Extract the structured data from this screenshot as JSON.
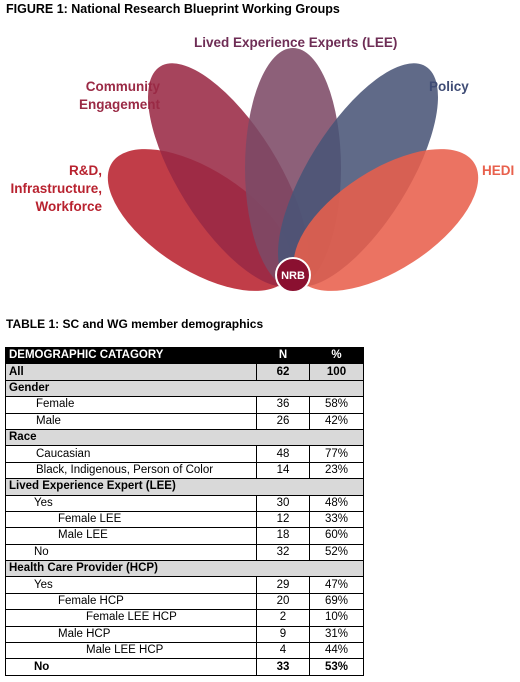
{
  "figure": {
    "title": "FIGURE 1: National Research Blueprint Working Groups",
    "center_label": "NRB",
    "petals": {
      "lee": {
        "label": "Lived Experience Experts (LEE)",
        "color": "#7d4a66"
      },
      "community": {
        "label_line1": "Community",
        "label_line2": "Engagement",
        "color": "#9a2a45"
      },
      "rd": {
        "label_line1": "R&D,",
        "label_line2": "Infrastructure,",
        "label_line3": "Workforce",
        "color": "#b8222f"
      },
      "policy": {
        "label": "Policy",
        "color": "#4a5578"
      },
      "hedi": {
        "label": "HEDI",
        "color": "#e8604c"
      }
    }
  },
  "table": {
    "title": "TABLE 1: SC and WG member demographics",
    "header": {
      "category": "DEMOGRAPHIC CATAGORY",
      "n": "N",
      "pct": "%"
    },
    "all": {
      "label": "All",
      "n": "62",
      "pct": "100"
    },
    "gender": {
      "label": "Gender",
      "female": {
        "label": "Female",
        "n": "36",
        "pct": "58%"
      },
      "male": {
        "label": "Male",
        "n": "26",
        "pct": "42%"
      }
    },
    "race": {
      "label": "Race",
      "caucasian": {
        "label": "Caucasian",
        "n": "48",
        "pct": "77%"
      },
      "bipoc": {
        "label": "Black, Indigenous, Person of Color",
        "n": "14",
        "pct": "23%"
      }
    },
    "lee": {
      "label": "Lived Experience Expert (LEE)",
      "yes": {
        "label": "Yes",
        "n": "30",
        "pct": "48%"
      },
      "female": {
        "label": "Female LEE",
        "n": "12",
        "pct": "33%"
      },
      "male": {
        "label": "Male LEE",
        "n": "18",
        "pct": "60%"
      },
      "no": {
        "label": "No",
        "n": "32",
        "pct": "52%"
      }
    },
    "hcp": {
      "label": "Health Care Provider (HCP)",
      "yes": {
        "label": "Yes",
        "n": "29",
        "pct": "47%"
      },
      "female": {
        "label": "Female HCP",
        "n": "20",
        "pct": "69%"
      },
      "female_lee": {
        "label": "Female LEE HCP",
        "n": "2",
        "pct": "10%"
      },
      "male": {
        "label": "Male HCP",
        "n": "9",
        "pct": "31%"
      },
      "male_lee": {
        "label": "Male LEE HCP",
        "n": "4",
        "pct": "44%"
      },
      "no": {
        "label": "No",
        "n": "33",
        "pct": "53%"
      }
    }
  }
}
